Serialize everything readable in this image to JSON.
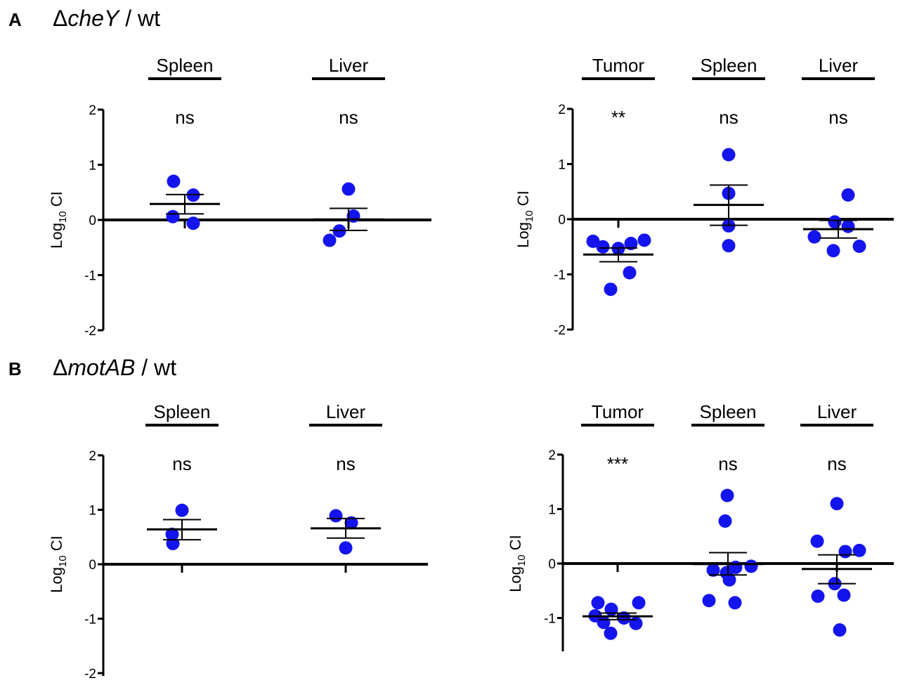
{
  "panels": [
    {
      "letter": "A",
      "delta": "Δ",
      "gene": "cheY",
      "suffix": " / wt"
    },
    {
      "letter": "B",
      "delta": "Δ",
      "gene": "motAB",
      "suffix": " / wt"
    }
  ],
  "colors": {
    "point": "#1414ee",
    "axis": "#000000"
  },
  "chart_data": [
    {
      "type": "scatter",
      "panel": "A",
      "ylabel": "Log10 CI",
      "ylabel_main": "Log",
      "ylabel_sub": "10",
      "ylabel_tail": " CI",
      "ylim": [
        -2,
        2
      ],
      "yticks": [
        2,
        1,
        0,
        -1,
        -2
      ],
      "groups": [
        {
          "name": "Spleen",
          "sig": "ns",
          "mean": 0.29,
          "sem_low": 0.11,
          "sem_high": 0.46,
          "values": [
            0.7,
            0.45,
            0.06,
            -0.06
          ]
        },
        {
          "name": "Liver",
          "sig": "ns",
          "mean": 0.01,
          "sem_low": -0.19,
          "sem_high": 0.21,
          "values": [
            0.56,
            0.07,
            -0.2,
            -0.37
          ]
        }
      ]
    },
    {
      "type": "scatter",
      "panel": "A",
      "ylabel": "Log10 CI",
      "ylabel_main": "Log",
      "ylabel_sub": "10",
      "ylabel_tail": " CI",
      "ylim": [
        -2,
        2
      ],
      "yticks": [
        2,
        1,
        0,
        -1,
        -2
      ],
      "groups": [
        {
          "name": "Tumor",
          "sig": "**",
          "mean": -0.64,
          "sem_low": -0.77,
          "sem_high": -0.52,
          "values": [
            -0.4,
            -0.38,
            -0.44,
            -0.5,
            -0.53,
            -0.97,
            -1.27
          ]
        },
        {
          "name": "Spleen",
          "sig": "ns",
          "mean": 0.26,
          "sem_low": -0.11,
          "sem_high": 0.62,
          "values": [
            1.17,
            0.47,
            -0.12,
            -0.48
          ]
        },
        {
          "name": "Liver",
          "sig": "ns",
          "mean": -0.18,
          "sem_low": -0.34,
          "sem_high": -0.02,
          "values": [
            0.44,
            -0.05,
            -0.13,
            -0.32,
            -0.49,
            -0.57
          ]
        }
      ]
    },
    {
      "type": "scatter",
      "panel": "B",
      "ylabel": "Log10 CI",
      "ylabel_main": "Log",
      "ylabel_sub": "10",
      "ylabel_tail": " CI",
      "ylim": [
        -2,
        2
      ],
      "yticks": [
        2,
        1,
        0,
        -1,
        -2
      ],
      "groups": [
        {
          "name": "Spleen",
          "sig": "ns",
          "mean": 0.64,
          "sem_low": 0.45,
          "sem_high": 0.82,
          "values": [
            0.99,
            0.55,
            0.38
          ]
        },
        {
          "name": "Liver",
          "sig": "ns",
          "mean": 0.66,
          "sem_low": 0.48,
          "sem_high": 0.84,
          "values": [
            0.89,
            0.76,
            0.3
          ]
        }
      ]
    },
    {
      "type": "scatter",
      "panel": "B",
      "ylabel": "Log10 CI",
      "ylabel_main": "Log",
      "ylabel_sub": "10",
      "ylabel_tail": " CI",
      "ylim": [
        -1.6,
        2
      ],
      "yticks": [
        2,
        1,
        0,
        -1
      ],
      "groups": [
        {
          "name": "Tumor",
          "sig": "***",
          "mean": -0.97,
          "sem_low": -1.03,
          "sem_high": -0.91,
          "values": [
            -0.72,
            -0.72,
            -0.84,
            -0.96,
            -1.0,
            -1.08,
            -1.1,
            -1.28
          ]
        },
        {
          "name": "Spleen",
          "sig": "ns",
          "mean": -0.01,
          "sem_low": -0.21,
          "sem_high": 0.2,
          "values": [
            1.25,
            0.78,
            -0.05,
            -0.07,
            -0.12,
            -0.17,
            -0.3,
            -0.68,
            -0.72
          ]
        },
        {
          "name": "Liver",
          "sig": "ns",
          "mean": -0.1,
          "sem_low": -0.37,
          "sem_high": 0.16,
          "values": [
            1.1,
            0.41,
            0.24,
            0.22,
            -0.37,
            -0.58,
            -0.6,
            -1.22
          ]
        }
      ]
    }
  ]
}
